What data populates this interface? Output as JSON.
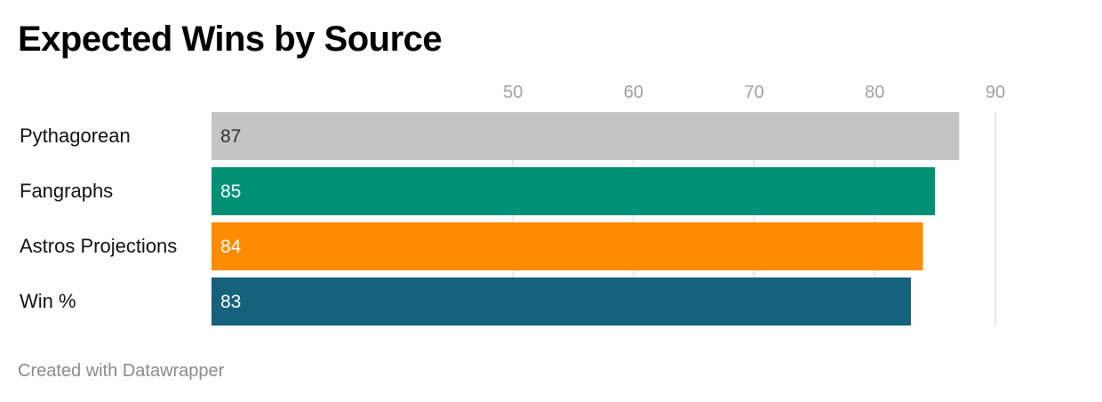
{
  "title": "Expected Wins by Source",
  "footer": "Created with Datawrapper",
  "chart_data": {
    "type": "bar",
    "orientation": "horizontal",
    "title": "Expected Wins by Source",
    "categories": [
      "Pythagorean",
      "Fangraphs",
      "Astros Projections",
      "Win %"
    ],
    "values": [
      87,
      85,
      84,
      83
    ],
    "data_labels": [
      "87",
      "85",
      "84",
      "83"
    ],
    "colors": [
      "#c4c4c4",
      "#009076",
      "#ff8c00",
      "#16627c"
    ],
    "label_colors": [
      "#333333",
      "#ffffff",
      "#ffffff",
      "#ffffff"
    ],
    "ticks": [
      50,
      60,
      70,
      80,
      90
    ],
    "tick_labels": [
      "50",
      "60",
      "70",
      "80",
      "90"
    ],
    "xlim": [
      25,
      90
    ],
    "grid": true,
    "axis_position": "top"
  }
}
